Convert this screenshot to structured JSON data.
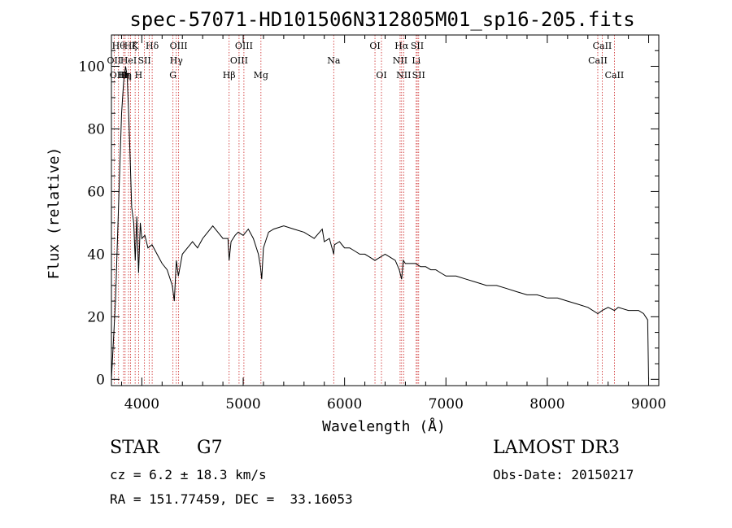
{
  "chart_data": {
    "type": "line",
    "title": "spec-57071-HD101506N312805M01_sp16-205.fits",
    "xlabel": "Wavelength (Å)",
    "ylabel": "Flux (relative)",
    "xlim": [
      3700,
      9100
    ],
    "ylim": [
      -2,
      110
    ],
    "xticks": [
      4000,
      5000,
      6000,
      7000,
      8000,
      9000
    ],
    "yticks": [
      0,
      20,
      40,
      60,
      80,
      100
    ],
    "series": [
      {
        "name": "spectrum",
        "x": [
          3700,
          3740,
          3770,
          3800,
          3820,
          3840,
          3855,
          3870,
          3885,
          3900,
          3920,
          3935,
          3950,
          3968,
          3985,
          4000,
          4030,
          4060,
          4100,
          4150,
          4200,
          4250,
          4300,
          4320,
          4340,
          4360,
          4400,
          4450,
          4500,
          4550,
          4600,
          4650,
          4700,
          4750,
          4800,
          4850,
          4861,
          4880,
          4920,
          4950,
          5000,
          5050,
          5100,
          5150,
          5170,
          5183,
          5200,
          5250,
          5300,
          5400,
          5500,
          5600,
          5700,
          5780,
          5800,
          5850,
          5893,
          5900,
          5950,
          6000,
          6050,
          6100,
          6150,
          6200,
          6250,
          6300,
          6350,
          6400,
          6450,
          6500,
          6540,
          6563,
          6580,
          6600,
          6650,
          6700,
          6750,
          6800,
          6850,
          6900,
          6950,
          7000,
          7100,
          7200,
          7300,
          7400,
          7500,
          7600,
          7700,
          7800,
          7900,
          8000,
          8100,
          8200,
          8300,
          8400,
          8498,
          8542,
          8600,
          8662,
          8700,
          8800,
          8900,
          8950,
          8990,
          9000
        ],
        "y": [
          0,
          25,
          55,
          85,
          95,
          100,
          97,
          85,
          70,
          55,
          50,
          38,
          52,
          34,
          50,
          45,
          46,
          42,
          43,
          40,
          37,
          35,
          30,
          25,
          38,
          33,
          40,
          42,
          44,
          42,
          45,
          47,
          49,
          47,
          45,
          45,
          38,
          44,
          46,
          47,
          46,
          48,
          45,
          40,
          36,
          32,
          42,
          47,
          48,
          49,
          48,
          47,
          45,
          48,
          44,
          45,
          40,
          43,
          44,
          42,
          42,
          41,
          40,
          40,
          39,
          38,
          39,
          40,
          39,
          38,
          35,
          32,
          38,
          37,
          37,
          37,
          36,
          36,
          35,
          35,
          34,
          33,
          33,
          32,
          31,
          30,
          30,
          29,
          28,
          27,
          27,
          26,
          26,
          25,
          24,
          23,
          21,
          22,
          23,
          22,
          23,
          22,
          22,
          21,
          19,
          0
        ]
      }
    ],
    "lines": [
      {
        "wl": 3727,
        "labels": [
          "",
          "OII",
          ""
        ]
      },
      {
        "wl": 3770,
        "labels": [
          "Hθ",
          "",
          "OIII"
        ]
      },
      {
        "wl": 3820,
        "labels": [
          "",
          "",
          "Hη"
        ]
      },
      {
        "wl": 3835,
        "labels": [
          "",
          "",
          "Hη"
        ]
      },
      {
        "wl": 3869,
        "labels": [
          "",
          "HeI",
          ""
        ]
      },
      {
        "wl": 3889,
        "labels": [
          "Hζ",
          "",
          ""
        ]
      },
      {
        "wl": 3934,
        "labels": [
          "K",
          "",
          ""
        ]
      },
      {
        "wl": 3968,
        "labels": [
          "",
          "",
          "H"
        ]
      },
      {
        "wl": 4026,
        "labels": [
          "",
          "SII",
          ""
        ]
      },
      {
        "wl": 4072,
        "labels": [
          "",
          "",
          ""
        ]
      },
      {
        "wl": 4102,
        "labels": [
          "Hδ",
          "",
          ""
        ]
      },
      {
        "wl": 4307,
        "labels": [
          "",
          "",
          "G"
        ]
      },
      {
        "wl": 4340,
        "labels": [
          "",
          "Hγ",
          ""
        ]
      },
      {
        "wl": 4363,
        "labels": [
          "OIII",
          "",
          ""
        ]
      },
      {
        "wl": 4861,
        "labels": [
          "",
          "",
          "Hβ"
        ]
      },
      {
        "wl": 4959,
        "labels": [
          "",
          "OIII",
          ""
        ]
      },
      {
        "wl": 5007,
        "labels": [
          "OIII",
          "",
          ""
        ]
      },
      {
        "wl": 5175,
        "labels": [
          "",
          "",
          "Mg"
        ]
      },
      {
        "wl": 5893,
        "labels": [
          "",
          "Na",
          ""
        ]
      },
      {
        "wl": 6300,
        "labels": [
          "OI",
          "",
          ""
        ]
      },
      {
        "wl": 6364,
        "labels": [
          "",
          "",
          "OI"
        ]
      },
      {
        "wl": 6548,
        "labels": [
          "",
          "NII",
          ""
        ]
      },
      {
        "wl": 6563,
        "labels": [
          "Hα",
          "",
          ""
        ]
      },
      {
        "wl": 6583,
        "labels": [
          "",
          "",
          "NII"
        ]
      },
      {
        "wl": 6707,
        "labels": [
          "",
          "Li",
          ""
        ]
      },
      {
        "wl": 6717,
        "labels": [
          "SII",
          "",
          ""
        ]
      },
      {
        "wl": 6731,
        "labels": [
          "",
          "",
          "SII"
        ]
      },
      {
        "wl": 8498,
        "labels": [
          "",
          "CaII",
          ""
        ]
      },
      {
        "wl": 8542,
        "labels": [
          "CaII",
          "",
          ""
        ]
      },
      {
        "wl": 8662,
        "labels": [
          "",
          "",
          "CaII"
        ]
      }
    ]
  },
  "info": {
    "class": "STAR",
    "subclass": "G7",
    "survey": "LAMOST DR3",
    "cz": "cz = 6.2 ± 18.3 km/s",
    "obs_date": "Obs-Date: 20150217",
    "radec": "RA = 151.77459, DEC =  33.16053"
  },
  "colors": {
    "line_marker": "#cc2222",
    "spectrum": "#000000"
  }
}
